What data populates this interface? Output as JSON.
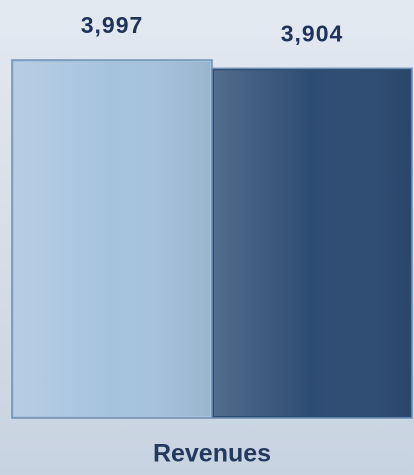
{
  "chart_data": {
    "type": "bar",
    "categories": [
      "Revenues"
    ],
    "series": [
      {
        "color": "#a6c3de",
        "values": [
          3997
        ],
        "value_labels": [
          "3,997"
        ]
      },
      {
        "color": "#2d4c73",
        "values": [
          3904
        ],
        "value_labels": [
          "3,904"
        ]
      }
    ]
  }
}
